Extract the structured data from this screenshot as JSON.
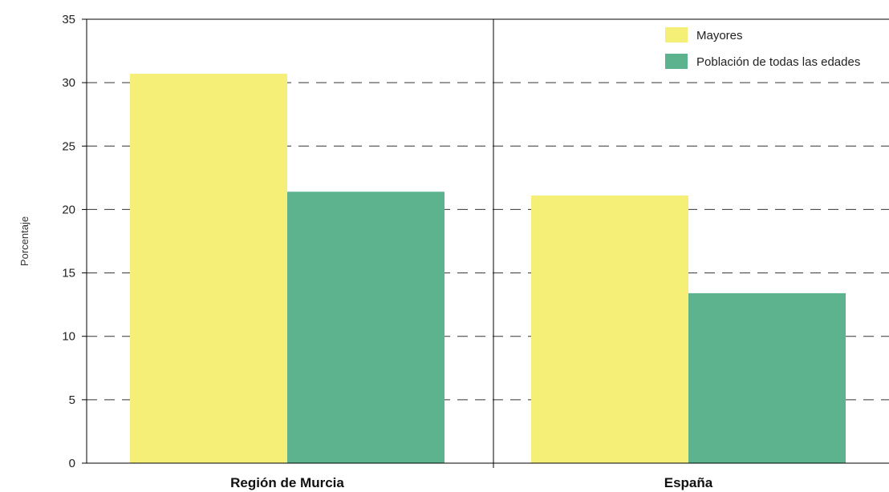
{
  "chart_data": {
    "type": "bar",
    "categories": [
      "Región de Murcia",
      "España"
    ],
    "series": [
      {
        "name": "Mayores",
        "values": [
          30.7,
          21.1
        ],
        "color": "#f5ef77"
      },
      {
        "name": "Población de todas las edades",
        "values": [
          21.4,
          13.4
        ],
        "color": "#5db38e"
      }
    ],
    "title": "",
    "xlabel": "",
    "ylabel": "Porcentaje",
    "ylim": [
      0,
      35
    ],
    "yticks": [
      "0",
      "5",
      "10",
      "15",
      "20",
      "25",
      "30",
      "35"
    ],
    "grid": true,
    "legend_position": "top-right"
  }
}
